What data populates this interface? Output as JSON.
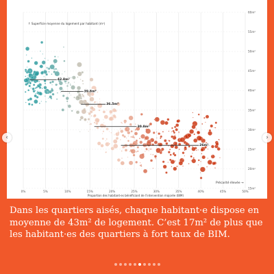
{
  "caption": "Dans les quartiers aisés, chaque habitant·e dispose en moyenne de 43m² de logement. C’est 17m² de plus que les habitant·es des quartiers à fort taux de BIM.",
  "carousel": {
    "total": 10,
    "active": 6,
    "prev_icon": "chevron-left-icon",
    "next_icon": "chevron-right-icon"
  },
  "chart_data": {
    "type": "scatter",
    "ylabel": "Superficie moyenne du logement par habitant (m²)",
    "xlabel": "Proportion des habitant·es bénéficiant de l'intervention majorée (BIM)",
    "annotation": "Précarité élevée",
    "x_ticks": [
      "0%",
      "5%",
      "10%",
      "15%",
      "20%",
      "25%",
      "30%",
      "35%",
      "40%",
      "45%",
      "50%"
    ],
    "y_ticks": [
      "15m²",
      "20m²",
      "25m²",
      "30m²",
      "35m²",
      "40m²",
      "45m²",
      "50m²",
      "55m²",
      "60m²"
    ],
    "xlim": [
      0,
      0.5
    ],
    "ylim": [
      15,
      60
    ],
    "colors": {
      "low": "#2a9a9e",
      "mid": "#f0c7b4",
      "high": "#c9320c"
    },
    "segments": [
      {
        "label": "42.8m²",
        "x0": 0.015,
        "x1": 0.1,
        "y": 42.8
      },
      {
        "label": "39.8m²",
        "x0": 0.085,
        "x1": 0.16,
        "y": 39.8
      },
      {
        "label": "36.5m²",
        "x0": 0.13,
        "x1": 0.21,
        "y": 36.5
      },
      {
        "label": "30.8m²",
        "x0": 0.16,
        "x1": 0.28,
        "y": 30.8
      },
      {
        "label": "26m²",
        "x0": 0.22,
        "x1": 0.42,
        "y": 26
      }
    ]
  }
}
